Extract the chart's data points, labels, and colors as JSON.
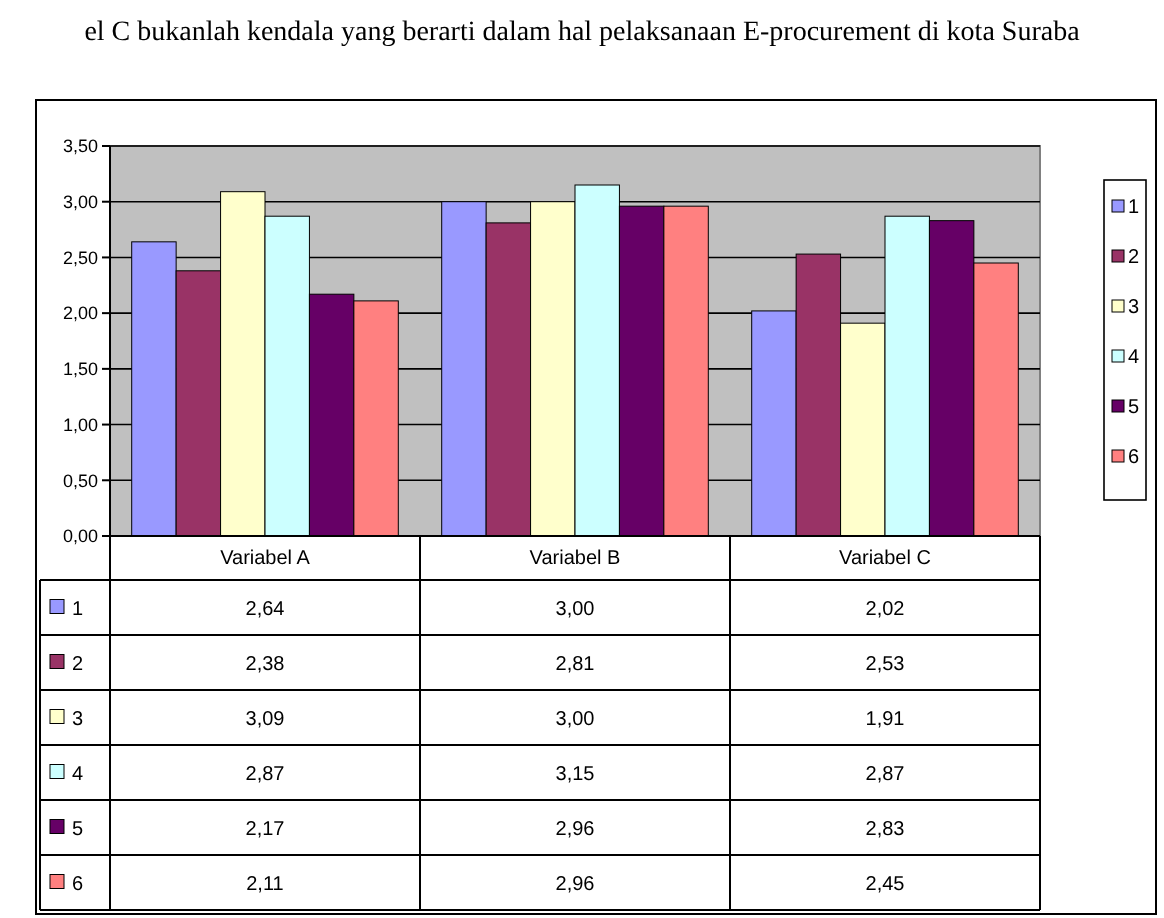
{
  "chart_data": {
    "type": "bar",
    "annotations": [
      "el C bukanlah kendala yang berarti dalam hal pelaksanaan E-procurement di kota Suraba"
    ],
    "categories": [
      "Variabel A",
      "Variabel B",
      "Variabel C"
    ],
    "series": [
      {
        "name": "1",
        "color": "#9999ff",
        "values": [
          2.64,
          3.0,
          2.02
        ],
        "value_labels": [
          "2,64",
          "3,00",
          "2,02"
        ]
      },
      {
        "name": "2",
        "color": "#993366",
        "values": [
          2.38,
          2.81,
          2.53
        ],
        "value_labels": [
          "2,38",
          "2,81",
          "2,53"
        ]
      },
      {
        "name": "3",
        "color": "#ffffcc",
        "values": [
          3.09,
          3.0,
          1.91
        ],
        "value_labels": [
          "3,09",
          "3,00",
          "1,91"
        ]
      },
      {
        "name": "4",
        "color": "#ccffff",
        "values": [
          2.87,
          3.15,
          2.87
        ],
        "value_labels": [
          "2,87",
          "3,15",
          "2,87"
        ]
      },
      {
        "name": "5",
        "color": "#660066",
        "values": [
          2.17,
          2.96,
          2.83
        ],
        "value_labels": [
          "2,17",
          "2,96",
          "2,83"
        ]
      },
      {
        "name": "6",
        "color": "#ff8080",
        "values": [
          2.11,
          2.96,
          2.45
        ],
        "value_labels": [
          "2,11",
          "2,96",
          "2,45"
        ]
      }
    ],
    "ylim": [
      0,
      3.5
    ],
    "yticks": [
      {
        "value": 0,
        "label": "0,00"
      },
      {
        "value": 0.5,
        "label": "0,50"
      },
      {
        "value": 1,
        "label": "1,00"
      },
      {
        "value": 1.5,
        "label": "1,50"
      },
      {
        "value": 2,
        "label": "2,00"
      },
      {
        "value": 2.5,
        "label": "2,50"
      },
      {
        "value": 3,
        "label": "3,00"
      },
      {
        "value": 3.5,
        "label": "3,50"
      }
    ],
    "grid": "y",
    "legend": "right"
  }
}
